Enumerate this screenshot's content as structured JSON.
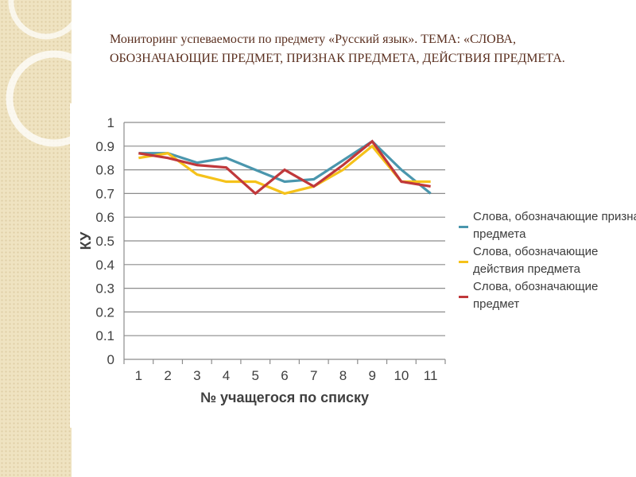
{
  "slide": {
    "title": "Мониторинг успеваемости по предмету «Русский язык». ТЕМА: «СЛОВА, ОБОЗНАЧАЮЩИЕ ПРЕДМЕТ, ПРИЗНАК ПРЕДМЕТА, ДЕЙСТВИЯ ПРЕДМЕТА."
  },
  "colors": {
    "series_1": "#4a96ad",
    "series_2": "#f5c21a",
    "series_3": "#c0383b",
    "grid": "#8c8c8c",
    "text": "#404040"
  },
  "chart_data": {
    "type": "line",
    "title": "",
    "xlabel": "№ учащегося по списку",
    "ylabel": "КУ",
    "categories": [
      "1",
      "2",
      "3",
      "4",
      "5",
      "6",
      "7",
      "8",
      "9",
      "10",
      "11"
    ],
    "ylim": [
      0,
      1
    ],
    "yticks": [
      "0",
      "0.1",
      "0.2",
      "0.3",
      "0.4",
      "0.5",
      "0.6",
      "0.7",
      "0.8",
      "0.9",
      "1"
    ],
    "grid": true,
    "legend_position": "right",
    "series": [
      {
        "name": "Слова, обозначающие признак предмета",
        "values": [
          0.87,
          0.87,
          0.83,
          0.85,
          0.8,
          0.75,
          0.76,
          0.84,
          0.92,
          0.8,
          0.7
        ]
      },
      {
        "name": "Слова, обозначающие действия предмета",
        "values": [
          0.85,
          0.87,
          0.78,
          0.75,
          0.75,
          0.7,
          0.73,
          0.8,
          0.9,
          0.75,
          0.75
        ]
      },
      {
        "name": "Слова, обозначающие предмет",
        "values": [
          0.87,
          0.85,
          0.82,
          0.81,
          0.7,
          0.8,
          0.73,
          0.82,
          0.92,
          0.75,
          0.73
        ]
      }
    ]
  }
}
